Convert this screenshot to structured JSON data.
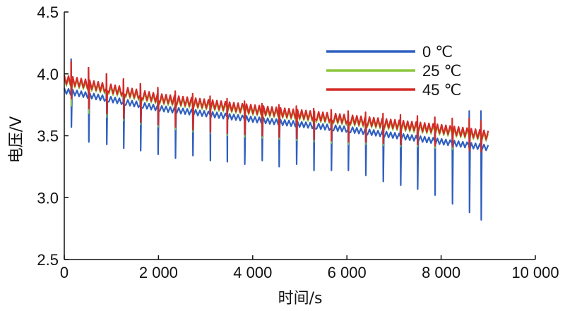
{
  "chart_data": {
    "type": "line",
    "title": "",
    "xlabel": "时间/s",
    "ylabel": "电压/V",
    "xlim": [
      0,
      10000
    ],
    "ylim": [
      2.5,
      4.5
    ],
    "x_ticks": [
      0,
      2000,
      4000,
      6000,
      8000,
      10000
    ],
    "x_tick_labels": [
      "0",
      "2 000",
      "4 000",
      "6 000",
      "8 000",
      "10 000"
    ],
    "y_ticks": [
      2.5,
      3.0,
      3.5,
      4.0,
      4.5
    ],
    "y_tick_labels": [
      "2.5",
      "3.0",
      "3.5",
      "4.0",
      "4.5"
    ],
    "grid": false,
    "legend_position": "top-right",
    "pulse_times": [
      150,
      520,
      900,
      1260,
      1620,
      1990,
      2360,
      2730,
      3100,
      3460,
      3830,
      4200,
      4560,
      4930,
      5300,
      5670,
      6030,
      6400,
      6770,
      7140,
      7500,
      7870,
      8240,
      8600,
      8850
    ],
    "series": [
      {
        "name": "0 ℃",
        "color": "#2f5fbf",
        "x": [
          0,
          2000,
          4000,
          6000,
          8000,
          9000
        ],
        "baseline": [
          3.86,
          3.72,
          3.63,
          3.55,
          3.45,
          3.4
        ],
        "pulse_min": [
          3.57,
          3.45,
          3.43,
          3.4,
          3.38,
          3.35,
          3.32,
          3.34,
          3.3,
          3.29,
          3.27,
          3.3,
          3.25,
          3.27,
          3.22,
          3.22,
          3.22,
          3.18,
          3.13,
          3.1,
          3.07,
          3.02,
          2.95,
          2.88,
          2.82
        ],
        "pulse_max": [
          4.12,
          4.05,
          4.0,
          3.95,
          3.92,
          3.88,
          3.85,
          3.82,
          3.8,
          3.78,
          3.76,
          3.74,
          3.72,
          3.7,
          3.69,
          3.67,
          3.66,
          3.64,
          3.62,
          3.61,
          3.6,
          3.58,
          3.56,
          3.7,
          3.7
        ]
      },
      {
        "name": "25 ℃",
        "color": "#8cc63f",
        "x": [
          0,
          2000,
          4000,
          6000,
          8000,
          9000
        ],
        "baseline": [
          3.93,
          3.78,
          3.69,
          3.61,
          3.53,
          3.48
        ],
        "pulse_min": [
          3.74,
          3.68,
          3.65,
          3.62,
          3.59,
          3.57,
          3.55,
          3.53,
          3.52,
          3.5,
          3.49,
          3.48,
          3.47,
          3.46,
          3.45,
          3.44,
          3.43,
          3.43,
          3.42,
          3.41,
          3.41,
          3.4,
          3.39,
          3.4,
          3.4
        ],
        "pulse_max": [
          4.02,
          3.97,
          3.93,
          3.89,
          3.86,
          3.83,
          3.81,
          3.79,
          3.77,
          3.75,
          3.73,
          3.71,
          3.7,
          3.68,
          3.67,
          3.65,
          3.64,
          3.63,
          3.62,
          3.6,
          3.59,
          3.58,
          3.57,
          3.58,
          3.58
        ]
      },
      {
        "name": "45 ℃",
        "color": "#d42a25",
        "x": [
          0,
          2000,
          4000,
          6000,
          8000,
          9000
        ],
        "baseline": [
          3.95,
          3.8,
          3.71,
          3.63,
          3.55,
          3.5
        ],
        "pulse_min": [
          3.8,
          3.72,
          3.68,
          3.64,
          3.61,
          3.59,
          3.57,
          3.55,
          3.53,
          3.52,
          3.51,
          3.5,
          3.49,
          3.48,
          3.47,
          3.46,
          3.45,
          3.45,
          3.44,
          3.43,
          3.43,
          3.42,
          3.41,
          3.38,
          3.37
        ],
        "pulse_max": [
          4.1,
          4.05,
          4.0,
          3.96,
          3.92,
          3.89,
          3.86,
          3.84,
          3.82,
          3.8,
          3.78,
          3.76,
          3.75,
          3.74,
          3.72,
          3.71,
          3.7,
          3.69,
          3.68,
          3.67,
          3.66,
          3.65,
          3.64,
          3.64,
          3.62
        ]
      }
    ]
  }
}
